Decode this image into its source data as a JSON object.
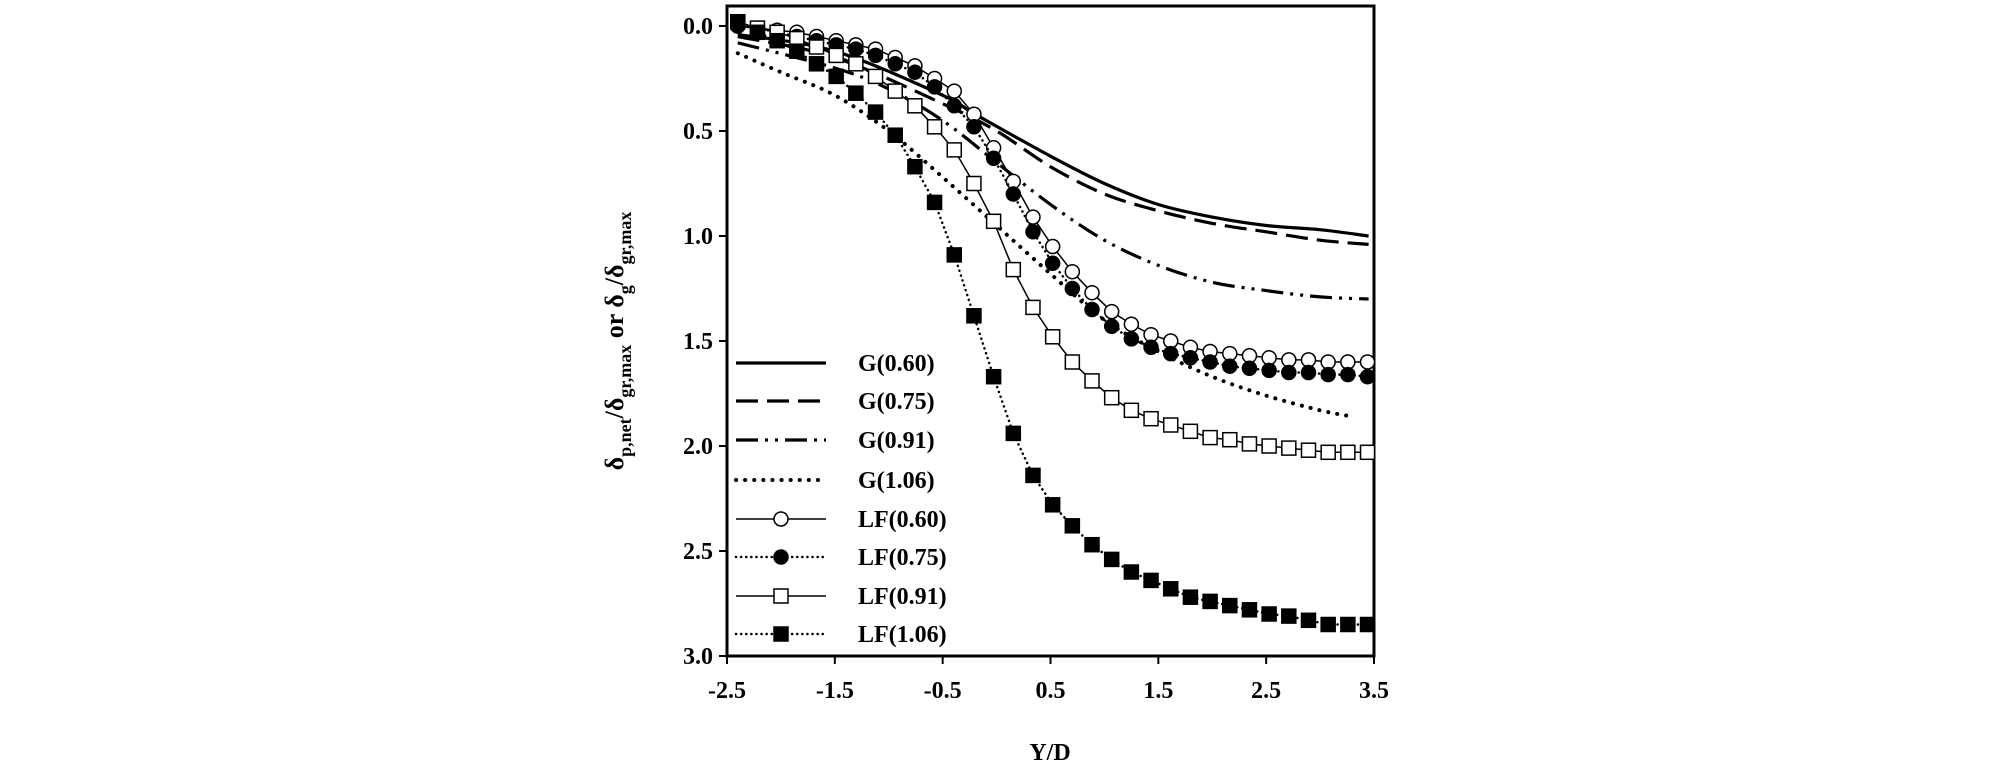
{
  "chart_data": {
    "type": "line",
    "title": "",
    "xlabel": "Y/D",
    "ylabel_parts": [
      "δ",
      "p,net",
      "/δ",
      "gr,max",
      " or δ",
      "g",
      "/δ",
      "gr,max"
    ],
    "ylabel": "δp,net/δgr,max or δg/δgr,max",
    "xlim": [
      -2.5,
      3.5
    ],
    "ylim": [
      0.0,
      3.0
    ],
    "y_inverted": true,
    "xticks": [
      "-2.5",
      "-1.5",
      "-0.5",
      "0.5",
      "1.5",
      "2.5",
      "3.5"
    ],
    "yticks": [
      "0.0",
      "0.5",
      "1.0",
      "1.5",
      "2.0",
      "2.5",
      "3.0"
    ],
    "grid": false,
    "legend_position": "bottom-left",
    "lf_x": [
      -2.4,
      -2.2175,
      -2.035,
      -1.8525,
      -1.67,
      -1.4875,
      -1.305,
      -1.1225,
      -0.94,
      -0.7575,
      -0.575,
      -0.3925,
      -0.21,
      -0.0275,
      0.155,
      0.3375,
      0.52,
      0.7025,
      0.885,
      1.0675,
      1.25,
      1.4325,
      1.615,
      1.7975,
      1.98,
      2.1625,
      2.345,
      2.5275,
      2.71,
      2.8925,
      3.075,
      3.2575,
      3.44
    ],
    "series": [
      {
        "name": "G(0.60)",
        "style": "solid",
        "x": [
          -2.4,
          -1.5,
          -0.5,
          -0.2,
          0.5,
          1.0,
          1.5,
          2.0,
          2.5,
          3.0,
          3.45
        ],
        "y": [
          0.04,
          0.12,
          0.33,
          0.42,
          0.62,
          0.75,
          0.85,
          0.91,
          0.95,
          0.97,
          1.0
        ]
      },
      {
        "name": "G(0.75)",
        "style": "dash",
        "x": [
          -2.4,
          -1.5,
          -0.5,
          0.0,
          0.5,
          1.0,
          1.5,
          2.0,
          2.5,
          3.0,
          3.45
        ],
        "y": [
          0.05,
          0.15,
          0.37,
          0.5,
          0.67,
          0.8,
          0.88,
          0.94,
          0.98,
          1.02,
          1.04
        ]
      },
      {
        "name": "G(0.91)",
        "style": "dashdotdot",
        "x": [
          -2.4,
          -1.5,
          -1.0,
          -0.5,
          0.0,
          0.5,
          1.0,
          1.5,
          2.0,
          2.5,
          3.0,
          3.45
        ],
        "y": [
          0.08,
          0.2,
          0.3,
          0.45,
          0.65,
          0.85,
          1.02,
          1.14,
          1.22,
          1.26,
          1.29,
          1.3
        ]
      },
      {
        "name": "G(1.06)",
        "style": "dot",
        "x": [
          -2.4,
          -2.0,
          -1.5,
          -1.0,
          -0.5,
          0.0,
          0.5,
          1.0,
          1.5,
          2.0,
          2.5,
          3.0,
          3.3
        ],
        "y": [
          0.13,
          0.22,
          0.33,
          0.5,
          0.72,
          0.95,
          1.18,
          1.4,
          1.55,
          1.67,
          1.76,
          1.83,
          1.86
        ]
      },
      {
        "name": "LF(0.60)",
        "style": "thin",
        "marker": "circle-open",
        "y": [
          0.0,
          0.01,
          0.02,
          0.03,
          0.05,
          0.07,
          0.09,
          0.11,
          0.15,
          0.19,
          0.25,
          0.31,
          0.42,
          0.58,
          0.74,
          0.91,
          1.05,
          1.17,
          1.27,
          1.36,
          1.42,
          1.47,
          1.5,
          1.53,
          1.55,
          1.56,
          1.57,
          1.58,
          1.59,
          1.59,
          1.6,
          1.6,
          1.6
        ]
      },
      {
        "name": "LF(0.75)",
        "style": "thindot",
        "marker": "circle-filled",
        "y": [
          0.0,
          0.01,
          0.03,
          0.05,
          0.07,
          0.09,
          0.11,
          0.14,
          0.18,
          0.22,
          0.29,
          0.38,
          0.48,
          0.63,
          0.8,
          0.98,
          1.13,
          1.25,
          1.35,
          1.43,
          1.49,
          1.53,
          1.56,
          1.58,
          1.6,
          1.62,
          1.63,
          1.64,
          1.65,
          1.65,
          1.66,
          1.66,
          1.67
        ]
      },
      {
        "name": "LF(0.91)",
        "style": "thin",
        "marker": "square-open",
        "y": [
          -0.02,
          0.01,
          0.03,
          0.06,
          0.1,
          0.14,
          0.18,
          0.24,
          0.31,
          0.38,
          0.48,
          0.59,
          0.75,
          0.93,
          1.16,
          1.34,
          1.48,
          1.6,
          1.69,
          1.77,
          1.83,
          1.87,
          1.9,
          1.93,
          1.96,
          1.97,
          1.99,
          2.0,
          2.01,
          2.02,
          2.03,
          2.03,
          2.03
        ]
      },
      {
        "name": "LF(1.06)",
        "style": "thindot",
        "marker": "square-filled",
        "y": [
          -0.02,
          0.03,
          0.07,
          0.12,
          0.18,
          0.24,
          0.32,
          0.41,
          0.52,
          0.67,
          0.84,
          1.09,
          1.38,
          1.67,
          1.94,
          2.14,
          2.28,
          2.38,
          2.47,
          2.54,
          2.6,
          2.64,
          2.68,
          2.72,
          2.74,
          2.76,
          2.78,
          2.8,
          2.81,
          2.83,
          2.85,
          2.85,
          2.85
        ]
      }
    ]
  }
}
